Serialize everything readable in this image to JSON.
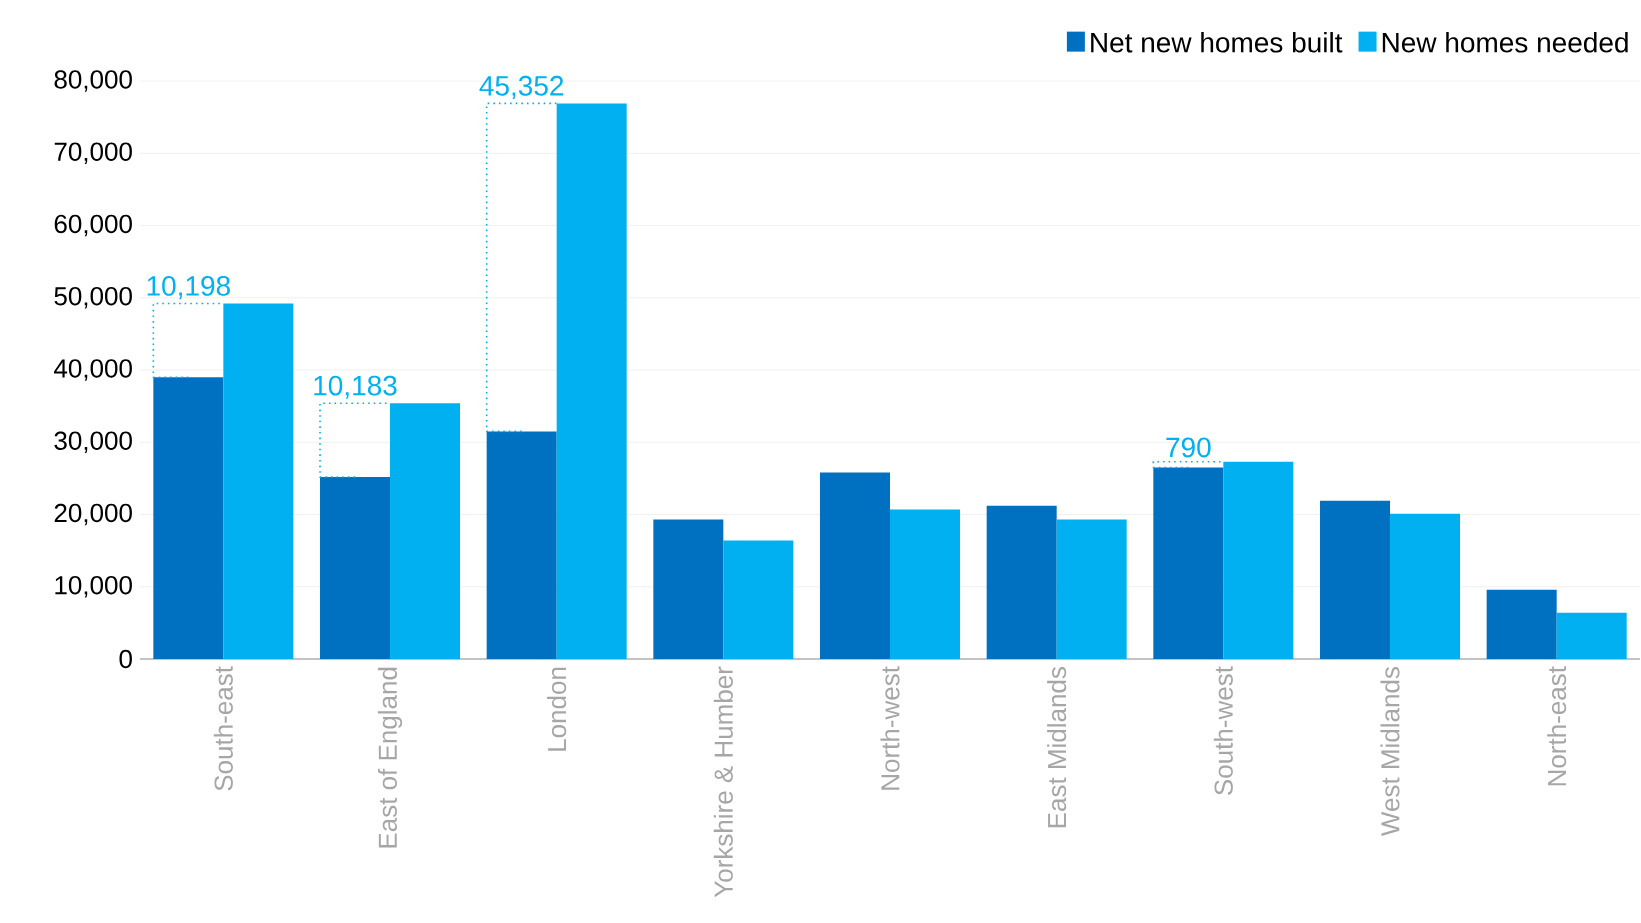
{
  "chart_data": {
    "type": "bar",
    "categories": [
      "South-east",
      "East of England",
      "London",
      "Yorkshire & Humber",
      "North-west",
      "East Midlands",
      "South-west",
      "West Midlands",
      "North-east"
    ],
    "series": [
      {
        "name": "Net new homes built",
        "color": "#0070c0",
        "values": [
          39000,
          25200,
          31500,
          19300,
          25800,
          21200,
          26500,
          21900,
          9600
        ]
      },
      {
        "name": "New homes needed",
        "color": "#00b0f0",
        "values": [
          49200,
          35400,
          76900,
          16400,
          20700,
          19300,
          27300,
          20100,
          6400
        ]
      }
    ],
    "ylim": [
      0,
      80000
    ],
    "yticks": [
      {
        "value": 0,
        "label": "0"
      },
      {
        "value": 10000,
        "label": "10,000"
      },
      {
        "value": 20000,
        "label": "20,000"
      },
      {
        "value": 30000,
        "label": "30,000"
      },
      {
        "value": 40000,
        "label": "40,000"
      },
      {
        "value": 50000,
        "label": "50,000"
      },
      {
        "value": 60000,
        "label": "60,000"
      },
      {
        "value": 70000,
        "label": "70,000"
      },
      {
        "value": 80000,
        "label": "80,000"
      }
    ],
    "grid": "y",
    "legend": "top right",
    "annotations": [
      {
        "text": "10,198",
        "x": "South-east",
        "y": 49200
      },
      {
        "text": "10,183",
        "x": "East of England",
        "y": 35400
      },
      {
        "text": "45,352",
        "x": "London",
        "y": 76900
      },
      {
        "text": "790",
        "x": "South-west",
        "y": 27300
      }
    ]
  }
}
